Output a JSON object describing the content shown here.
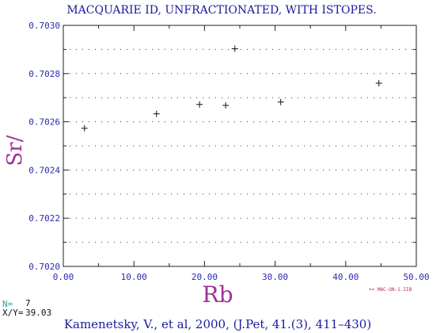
{
  "colors": {
    "title": "#1a1a9e",
    "tick": "#2a2ab0",
    "axis_label": "#a0309a",
    "n_label": "#2aa0a0",
    "text": "#111111",
    "legend": "#c0206a"
  },
  "chart_data": {
    "type": "scatter",
    "title": "MACQUARIE ID, UNFRACTIONATED, WITH ISTOPES.",
    "xlabel": "Rb",
    "ylabel": "Sr/",
    "xlim": [
      0,
      50
    ],
    "ylim": [
      0.702,
      0.703
    ],
    "x_ticks": [
      "0.00",
      "10.00",
      "20.00",
      "30.00",
      "40.00",
      "50.00"
    ],
    "y_ticks": [
      "0.7020",
      "0.7022",
      "0.7024",
      "0.7026",
      "0.7028",
      "0.7030"
    ],
    "grid": "horizontal-dotted",
    "marker": "+",
    "legend_label": "+= MAC-UN-1.IIB",
    "points": [
      {
        "x": 3.0,
        "y": 0.702573
      },
      {
        "x": 13.2,
        "y": 0.702633
      },
      {
        "x": 19.3,
        "y": 0.702672
      },
      {
        "x": 23.0,
        "y": 0.702668
      },
      {
        "x": 24.3,
        "y": 0.702903
      },
      {
        "x": 30.8,
        "y": 0.702682
      },
      {
        "x": 44.7,
        "y": 0.70276
      }
    ]
  },
  "stats": {
    "n_label": "N=",
    "n_value": "7",
    "xy_label": "X/Y=",
    "xy_value": "39.03"
  },
  "citation": "Kamenetsky, V., et al, 2000, (J.Pet, 41.(3), 411–430)"
}
